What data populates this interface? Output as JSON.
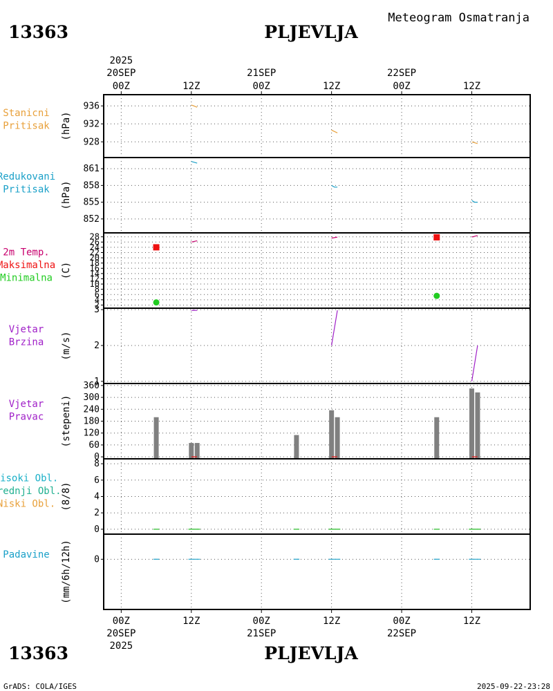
{
  "header": {
    "station_id": "13363",
    "station_name": "PLJEVLJA",
    "product": "Meteogram Osmatranja"
  },
  "footer": {
    "station_id": "13363",
    "station_name": "PLJEVLJA",
    "credit": "GrADS: COLA/IGES",
    "timestamp": "2025-09-22-23:28"
  },
  "time_axis": {
    "year": "2025",
    "ticks": [
      {
        "hour": 0,
        "label": "00Z",
        "date": "20SEP"
      },
      {
        "hour": 12,
        "label": "12Z",
        "date": ""
      },
      {
        "hour": 24,
        "label": "00Z",
        "date": "21SEP"
      },
      {
        "hour": 36,
        "label": "12Z",
        "date": ""
      },
      {
        "hour": 48,
        "label": "00Z",
        "date": "22SEP"
      },
      {
        "hour": 60,
        "label": "12Z",
        "date": ""
      }
    ],
    "range_hours": [
      -3,
      70
    ]
  },
  "colors": {
    "station_pressure": "#e8a03a",
    "reduced_pressure": "#1aa0c8",
    "temperature": "#c8006e",
    "tmax": "#ee1111",
    "tmin": "#22cc22",
    "wind": "#a020c8",
    "direction_bar": "#808080",
    "clouds_high": "#1ab0c8",
    "clouds_mid": "#20b090",
    "clouds_low": "#e8a03a",
    "precip": "#1aa0c8",
    "cloud_line": "#22bb22"
  },
  "chart_data": [
    {
      "id": "station_pressure",
      "type": "line",
      "labels": [
        "Stanicni",
        "Pritisak"
      ],
      "ylabel": "(hPa)",
      "ylim": [
        924.5,
        938.5
      ],
      "yticks": [
        928,
        932,
        936
      ],
      "series": [
        {
          "name": "Stanicni Pritisak",
          "points": [
            [
              12,
              936.2
            ],
            [
              13,
              935.7
            ]
          ]
        },
        {
          "name": "Stanicni Pritisak",
          "points": [
            [
              36,
              930.6
            ],
            [
              37,
              930.0
            ]
          ]
        },
        {
          "name": "Stanicni Pritisak",
          "points": [
            [
              60,
              928.0
            ],
            [
              61,
              927.6
            ]
          ]
        }
      ]
    },
    {
      "id": "reduced_pressure",
      "type": "line",
      "labels": [
        "Redukovani",
        "Pritisak"
      ],
      "ylabel": "(hPa)",
      "ylim": [
        849.5,
        863.0
      ],
      "yticks": [
        852,
        855,
        858,
        861
      ],
      "series": [
        {
          "name": "Redukovani Pritisak",
          "points": [
            [
              12,
              862.3
            ],
            [
              13,
              862.0
            ]
          ]
        },
        {
          "name": "Redukovani Pritisak",
          "points": [
            [
              36,
              858.0
            ],
            [
              36.5,
              857.7
            ],
            [
              37,
              857.7
            ]
          ]
        },
        {
          "name": "Redukovani Pritisak",
          "points": [
            [
              60,
              855.3
            ],
            [
              60.5,
              855.0
            ],
            [
              61,
              855.0
            ]
          ]
        }
      ]
    },
    {
      "id": "temperature",
      "type": "line+markers",
      "labels": [
        "2m Temp.",
        "Maksimalna",
        "Minimalna"
      ],
      "ylabel": "(C)",
      "ylim": [
        0.8,
        29.5
      ],
      "yticks": [
        2,
        4,
        6,
        8,
        10,
        12,
        14,
        16,
        18,
        20,
        22,
        24,
        26,
        28
      ],
      "series": [
        {
          "name": "2m Temp.",
          "points": [
            [
              12,
              26.0
            ],
            [
              13,
              26.5
            ]
          ]
        },
        {
          "name": "2m Temp.",
          "points": [
            [
              36,
              27.5
            ],
            [
              37,
              27.9
            ]
          ]
        },
        {
          "name": "2m Temp.",
          "points": [
            [
              60,
              27.9
            ],
            [
              61,
              28.5
            ]
          ]
        }
      ],
      "max": [
        {
          "x": 6,
          "y": 24
        },
        {
          "x": 54,
          "y": 27.8
        }
      ],
      "min": [
        {
          "x": 6,
          "y": 3
        },
        {
          "x": 54,
          "y": 5.5
        }
      ]
    },
    {
      "id": "wind_speed",
      "type": "line",
      "labels": [
        "Vjetar",
        "Brzina"
      ],
      "ylabel": "(m/s)",
      "ylim": [
        0.94,
        3.04
      ],
      "yticks": [
        1,
        2,
        3
      ],
      "series": [
        {
          "name": "Vjetar Brzina",
          "points": [
            [
              12,
              2.98
            ],
            [
              13,
              2.98
            ]
          ]
        },
        {
          "name": "Vjetar Brzina",
          "points": [
            [
              36,
              2.0
            ],
            [
              37,
              2.98
            ]
          ]
        },
        {
          "name": "Vjetar Brzina",
          "points": [
            [
              60,
              1.0
            ],
            [
              61,
              2.0
            ]
          ]
        }
      ]
    },
    {
      "id": "wind_direction",
      "type": "bar",
      "labels": [
        "Vjetar",
        "Pravac"
      ],
      "ylabel": "(stepeni)",
      "ylim": [
        -10,
        370
      ],
      "yticks": [
        0,
        60,
        120,
        180,
        240,
        300,
        360
      ],
      "bars": [
        {
          "x": 6,
          "value": 200
        },
        {
          "x": 12,
          "value": 70
        },
        {
          "x": 13,
          "value": 70
        },
        {
          "x": 30,
          "value": 110
        },
        {
          "x": 36,
          "value": 235
        },
        {
          "x": 37,
          "value": 200
        },
        {
          "x": 54,
          "value": 200
        },
        {
          "x": 60,
          "value": 345
        },
        {
          "x": 61,
          "value": 325
        }
      ],
      "calm_markers": [
        12.5,
        36.5,
        60.5
      ]
    },
    {
      "id": "clouds",
      "type": "line",
      "labels": [
        "Visoki Obl.",
        "Srednji Obl.",
        "Niski Obl."
      ],
      "ylabel": "(8/8)",
      "ylim": [
        -0.6,
        8.6
      ],
      "yticks": [
        0,
        2,
        4,
        6,
        8
      ],
      "series": [
        {
          "name": "Niski Obl.",
          "points": [
            [
              5.5,
              0
            ],
            [
              6.5,
              0
            ]
          ]
        },
        {
          "name": "Niski Obl.",
          "points": [
            [
              11.5,
              0
            ],
            [
              13.5,
              0
            ]
          ]
        },
        {
          "name": "Niski Obl.",
          "points": [
            [
              29.5,
              0
            ],
            [
              30.5,
              0
            ]
          ]
        },
        {
          "name": "Niski Obl.",
          "points": [
            [
              35.5,
              0
            ],
            [
              37.5,
              0
            ]
          ]
        },
        {
          "name": "Niski Obl.",
          "points": [
            [
              53.5,
              0
            ],
            [
              54.5,
              0
            ]
          ]
        },
        {
          "name": "Niski Obl.",
          "points": [
            [
              59.5,
              0
            ],
            [
              61.5,
              0
            ]
          ]
        }
      ]
    },
    {
      "id": "precipitation",
      "type": "line",
      "labels": [
        "Padavine"
      ],
      "ylabel": "(mm/6h/12h)",
      "ylim": [
        -1.2,
        0.6
      ],
      "yticks": [
        0
      ],
      "series": [
        {
          "name": "Padavine",
          "points": [
            [
              5.5,
              0
            ],
            [
              6.5,
              0
            ]
          ]
        },
        {
          "name": "Padavine",
          "points": [
            [
              11.5,
              0
            ],
            [
              13.5,
              0
            ]
          ]
        },
        {
          "name": "Padavine",
          "points": [
            [
              29.5,
              0
            ],
            [
              30.5,
              0
            ]
          ]
        },
        {
          "name": "Padavine",
          "points": [
            [
              35.5,
              0
            ],
            [
              37.5,
              0
            ]
          ]
        },
        {
          "name": "Padavine",
          "points": [
            [
              53.5,
              0
            ],
            [
              54.5,
              0
            ]
          ]
        },
        {
          "name": "Padavine",
          "points": [
            [
              59.5,
              0
            ],
            [
              61.5,
              0
            ]
          ]
        }
      ]
    }
  ]
}
